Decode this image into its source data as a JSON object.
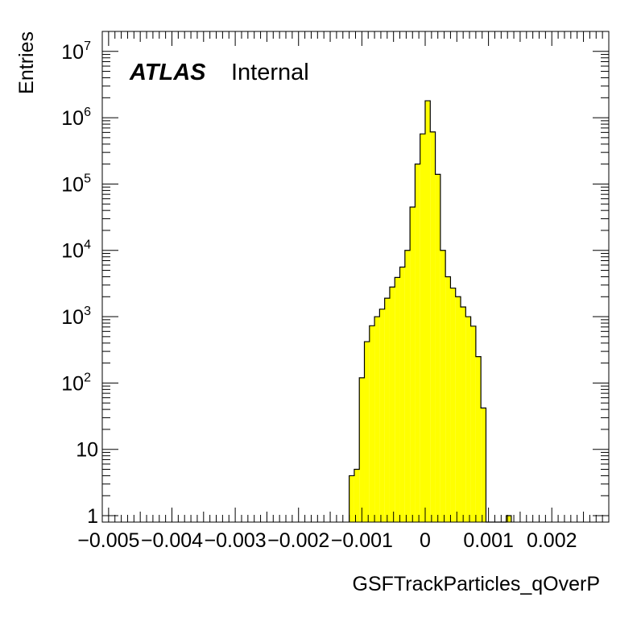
{
  "chart_data": {
    "type": "histogram",
    "title": "",
    "xlabel": "GSFTrackParticles_qOverP",
    "ylabel": "Entries",
    "label_bold": "ATLAS",
    "label_status": "Internal",
    "yscale": "log",
    "xlim": [
      -0.0051,
      0.0029
    ],
    "ylim": [
      0.8,
      20000000
    ],
    "x_tick_labels": [
      "−0.005",
      "−0.004",
      "−0.003",
      "−0.002",
      "−0.001",
      "0",
      "0.001",
      "0.002"
    ],
    "x_tick_values": [
      -0.005,
      -0.004,
      -0.003,
      -0.002,
      -0.001,
      0,
      0.001,
      0.002
    ],
    "y_ticks": [
      {
        "value": 1,
        "label": "1",
        "sup": ""
      },
      {
        "value": 10,
        "label": "10",
        "sup": ""
      },
      {
        "value": 100,
        "label": "10",
        "sup": "2"
      },
      {
        "value": 1000,
        "label": "10",
        "sup": "3"
      },
      {
        "value": 10000,
        "label": "10",
        "sup": "4"
      },
      {
        "value": 100000,
        "label": "10",
        "sup": "5"
      },
      {
        "value": 1000000,
        "label": "10",
        "sup": "6"
      },
      {
        "value": 10000000,
        "label": "10",
        "sup": "7"
      }
    ],
    "fill_color": "#ffff00",
    "line_color": "#000000",
    "bin_width": 8e-05,
    "bins": [
      {
        "x_low": -0.0012,
        "count": 4
      },
      {
        "x_low": -0.00112,
        "count": 5
      },
      {
        "x_low": -0.00104,
        "count": 120
      },
      {
        "x_low": -0.00096,
        "count": 420
      },
      {
        "x_low": -0.00088,
        "count": 730
      },
      {
        "x_low": -0.0008,
        "count": 1000
      },
      {
        "x_low": -0.00072,
        "count": 1300
      },
      {
        "x_low": -0.00064,
        "count": 1900
      },
      {
        "x_low": -0.00056,
        "count": 2800
      },
      {
        "x_low": -0.00048,
        "count": 3900
      },
      {
        "x_low": -0.0004,
        "count": 5600
      },
      {
        "x_low": -0.00032,
        "count": 10000
      },
      {
        "x_low": -0.00024,
        "count": 45000
      },
      {
        "x_low": -0.00016,
        "count": 200000
      },
      {
        "x_low": -8e-05,
        "count": 570000
      },
      {
        "x_low": 0.0,
        "count": 1800000
      },
      {
        "x_low": 8e-05,
        "count": 610000
      },
      {
        "x_low": 0.00016,
        "count": 140000
      },
      {
        "x_low": 0.00024,
        "count": 10000
      },
      {
        "x_low": 0.00032,
        "count": 4000
      },
      {
        "x_low": 0.0004,
        "count": 2700
      },
      {
        "x_low": 0.00048,
        "count": 2000
      },
      {
        "x_low": 0.00056,
        "count": 1400
      },
      {
        "x_low": 0.00064,
        "count": 1000
      },
      {
        "x_low": 0.00072,
        "count": 720
      },
      {
        "x_low": 0.0008,
        "count": 250
      },
      {
        "x_low": 0.00088,
        "count": 42
      },
      {
        "x_low": 0.00096,
        "count": 0.8
      },
      {
        "x_low": 0.00104,
        "count": 0.8
      },
      {
        "x_low": 0.00112,
        "count": 0.8
      },
      {
        "x_low": 0.0012,
        "count": 0.8
      },
      {
        "x_low": 0.00128,
        "count": 1
      }
    ]
  }
}
